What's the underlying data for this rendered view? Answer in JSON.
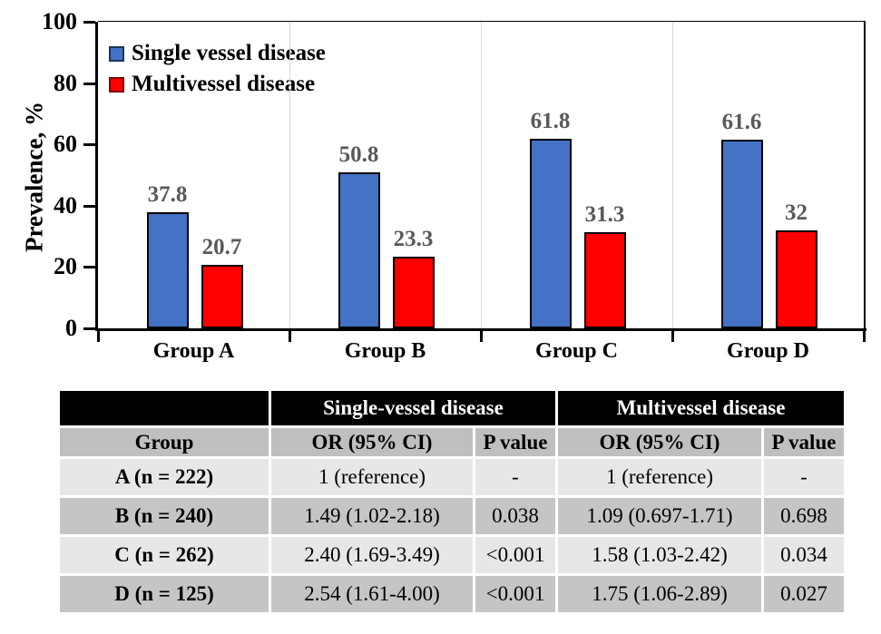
{
  "chart_data": {
    "type": "bar",
    "title": "",
    "categories": [
      "Group A",
      "Group B",
      "Group C",
      "Group D"
    ],
    "series": [
      {
        "name": "Single vessel disease",
        "color": "#4472C4",
        "border_color": "#17375E",
        "values": [
          37.8,
          50.8,
          61.8,
          61.6
        ]
      },
      {
        "name": "Multivessel disease",
        "color": "#FF0000",
        "border_color": "#7F0000",
        "values": [
          20.7,
          23.3,
          31.3,
          32
        ]
      }
    ],
    "value_labels": [
      [
        "37.8",
        "50.8",
        "61.8",
        "61.6"
      ],
      [
        "20.7",
        "23.3",
        "31.3",
        "32"
      ]
    ],
    "xlabel": "",
    "ylabel": "Prevalence, %",
    "ylim": [
      0,
      100
    ],
    "yticks": [
      "0",
      "20",
      "40",
      "60",
      "80",
      "100"
    ],
    "grid": "vertical-category-separators-only",
    "legend_position": "top-left-inside",
    "label_color": "#595959",
    "gridline_color": "#D9D9D9"
  },
  "table": {
    "col_groups": [
      {
        "label": "",
        "span": 1
      },
      {
        "label": "Single-vessel disease",
        "span": 2
      },
      {
        "label": "Multivessel disease",
        "span": 2
      }
    ],
    "headers": [
      "Group",
      "OR (95% CI)",
      "P value",
      "OR (95% CI)",
      "P value"
    ],
    "rows": [
      [
        "A (n = 222)",
        "1 (reference)",
        "-",
        "1 (reference)",
        "-"
      ],
      [
        "B (n = 240)",
        "1.49 (1.02-2.18)",
        "0.038",
        "1.09 (0.697-1.71)",
        "0.698"
      ],
      [
        "C (n = 262)",
        "2.40 (1.69-3.49)",
        "<0.001",
        "1.58 (1.03-2.42)",
        "0.034"
      ],
      [
        "D (n = 125)",
        "2.54 (1.61-4.00)",
        "<0.001",
        "1.75 (1.06-2.89)",
        "0.027"
      ]
    ],
    "colors": {
      "header_bg": "#000000",
      "header_fg": "#FFFFFF",
      "subheader_bg": "#BFBFBF",
      "row_light": "#E7E7E7",
      "row_dark": "#C5C5C5"
    }
  }
}
